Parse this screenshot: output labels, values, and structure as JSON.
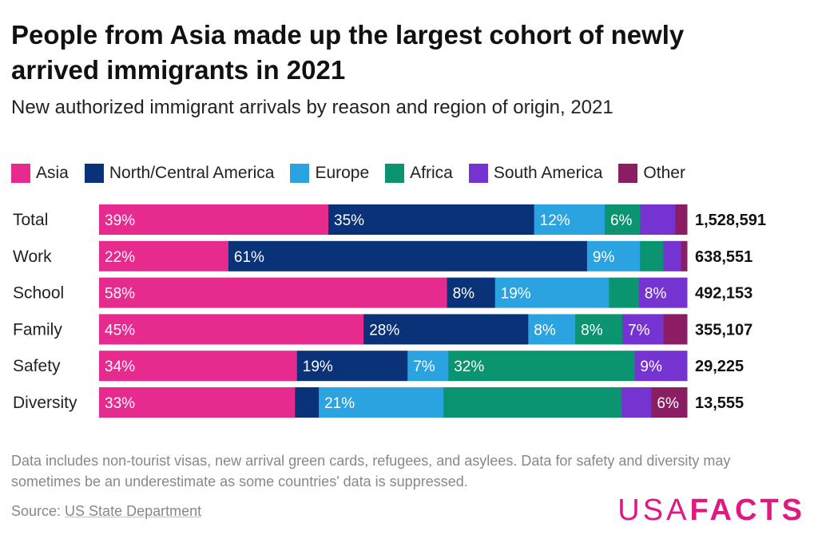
{
  "title": "People from Asia made up the largest cohort of newly arrived immigrants in 2021",
  "subtitle": "New authorized immigrant arrivals by reason and region of origin, 2021",
  "note": "Data includes non-tourist visas, new arrival green cards, refugees, and asylees. Data for safety and diversity may sometimes be an underestimate as some countries' data is suppressed.",
  "source": {
    "prefix": "Source: ",
    "link_text": "US State Department"
  },
  "logo": {
    "part1": "USA",
    "part2": "FACTS"
  },
  "colors": {
    "Asia": "#e62a8e",
    "North/Central America": "#0a3278",
    "Europe": "#2ba3e0",
    "Africa": "#0a9470",
    "South America": "#7534d2",
    "Other": "#8b1d62"
  },
  "chart_data": {
    "type": "bar",
    "orientation": "horizontal",
    "stacked": true,
    "normalized": true,
    "categories": [
      "Total",
      "Work",
      "School",
      "Family",
      "Safety",
      "Diversity"
    ],
    "totals": [
      "1,528,591",
      "638,551",
      "492,153",
      "355,107",
      "29,225",
      "13,555"
    ],
    "series": [
      {
        "name": "Asia",
        "values": [
          39,
          22,
          58,
          45,
          34,
          33
        ],
        "labels": [
          "39%",
          "22%",
          "58%",
          "45%",
          "34%",
          "33%"
        ]
      },
      {
        "name": "North/Central America",
        "values": [
          35,
          61,
          8,
          28,
          19,
          4
        ],
        "labels": [
          "35%",
          "61%",
          "8%",
          "28%",
          "19%",
          ""
        ]
      },
      {
        "name": "Europe",
        "values": [
          12,
          9,
          19,
          8,
          7,
          21
        ],
        "labels": [
          "12%",
          "9%",
          "19%",
          "8%",
          "7%",
          "21%"
        ]
      },
      {
        "name": "Africa",
        "values": [
          6,
          4,
          5,
          8,
          32,
          30
        ],
        "labels": [
          "6%",
          "",
          "",
          "8%",
          "32%",
          ""
        ]
      },
      {
        "name": "South America",
        "values": [
          6,
          3,
          8,
          7,
          9,
          5
        ],
        "labels": [
          "",
          "",
          "8%",
          "7%",
          "9%",
          ""
        ]
      },
      {
        "name": "Other",
        "values": [
          2,
          1,
          0,
          4,
          0,
          6
        ],
        "labels": [
          "",
          "",
          "",
          "",
          "",
          "6%"
        ]
      }
    ],
    "legend_position": "top-left",
    "grid": false
  }
}
